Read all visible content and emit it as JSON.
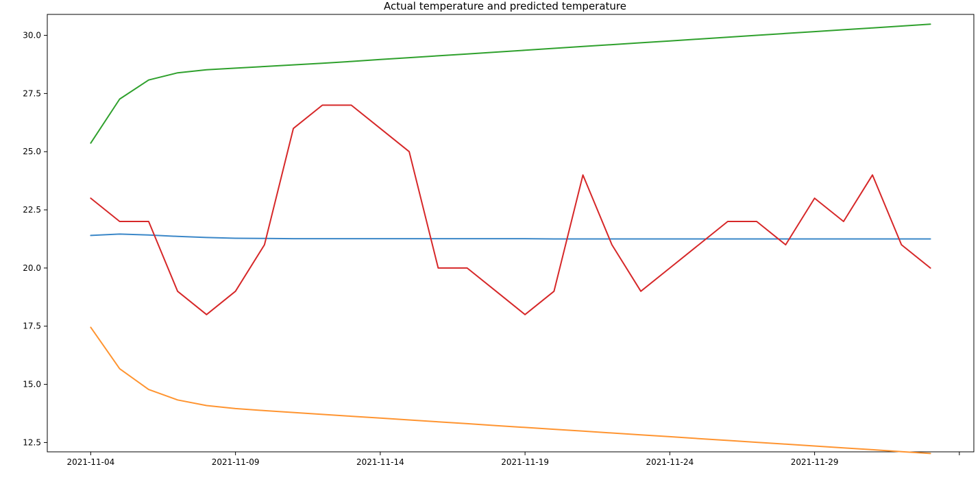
{
  "chart_data": {
    "type": "line",
    "title": "Actual temperature and predicted temperature",
    "xlabel": "",
    "ylabel": "",
    "grid": false,
    "x_type": "date",
    "x": [
      "2021-11-04",
      "2021-11-05",
      "2021-11-06",
      "2021-11-07",
      "2021-11-08",
      "2021-11-09",
      "2021-11-10",
      "2021-11-11",
      "2021-11-12",
      "2021-11-13",
      "2021-11-14",
      "2021-11-15",
      "2021-11-16",
      "2021-11-17",
      "2021-11-18",
      "2021-11-19",
      "2021-11-20",
      "2021-11-21",
      "2021-11-22",
      "2021-11-23",
      "2021-11-24",
      "2021-11-25",
      "2021-11-26",
      "2021-11-27",
      "2021-11-28",
      "2021-11-29",
      "2021-11-30",
      "2021-12-01",
      "2021-12-02",
      "2021-12-03"
    ],
    "xlim": [
      "2021-11-02T12:00",
      "2021-12-04T12:00"
    ],
    "xticks": [
      "2021-11-04",
      "2021-11-09",
      "2021-11-14",
      "2021-11-19",
      "2021-11-24",
      "2021-11-29",
      "2021-12-04"
    ],
    "xtick_labels": [
      "2021-11-04",
      "2021-11-09",
      "2021-11-14",
      "2021-11-19",
      "2021-11-24",
      "2021-11-29",
      ""
    ],
    "ylim": [
      12.1,
      30.9
    ],
    "yticks": [
      12.5,
      15.0,
      17.5,
      20.0,
      22.5,
      25.0,
      27.5,
      30.0
    ],
    "ytick_labels": [
      "12.5",
      "15.0",
      "17.5",
      "20.0",
      "22.5",
      "25.0",
      "27.5",
      "30.0"
    ],
    "series": [
      {
        "color": "#3a87c8",
        "values": [
          21.4,
          21.46,
          21.42,
          21.36,
          21.31,
          21.28,
          21.27,
          21.26,
          21.26,
          21.26,
          21.26,
          21.26,
          21.26,
          21.26,
          21.26,
          21.26,
          21.25,
          21.25,
          21.25,
          21.25,
          21.25,
          21.25,
          21.25,
          21.25,
          21.25,
          21.25,
          21.25,
          21.25,
          21.25,
          21.25
        ]
      },
      {
        "color": "#ff9430",
        "values": [
          17.45,
          15.67,
          14.78,
          14.33,
          14.09,
          13.96,
          13.87,
          13.79,
          13.71,
          13.63,
          13.55,
          13.47,
          13.39,
          13.31,
          13.23,
          13.15,
          13.07,
          12.99,
          12.91,
          12.83,
          12.75,
          12.67,
          12.59,
          12.51,
          12.43,
          12.35,
          12.27,
          12.19,
          12.11,
          12.03
        ]
      },
      {
        "color": "#2ea02c",
        "values": [
          25.37,
          27.26,
          28.08,
          28.39,
          28.52,
          28.59,
          28.66,
          28.73,
          28.8,
          28.88,
          28.96,
          29.04,
          29.12,
          29.2,
          29.28,
          29.36,
          29.44,
          29.52,
          29.6,
          29.68,
          29.76,
          29.84,
          29.92,
          30.0,
          30.08,
          30.16,
          30.24,
          30.32,
          30.4,
          30.48
        ]
      },
      {
        "color": "#d62728",
        "values": [
          23,
          22,
          22,
          19,
          18,
          19,
          21,
          26,
          27,
          27,
          26,
          25,
          20,
          20,
          19,
          18,
          19,
          24,
          21,
          19,
          20,
          21,
          22,
          22,
          21,
          23,
          22,
          24,
          21,
          20
        ]
      }
    ]
  }
}
